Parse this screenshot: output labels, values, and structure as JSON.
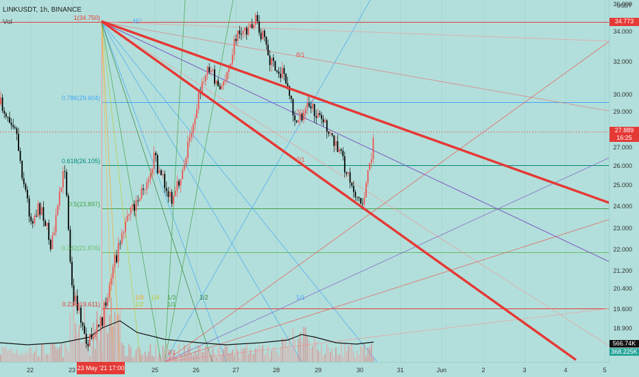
{
  "header": {
    "symbol_line": "LINKUSDT, 1h, BINANCE",
    "vol_label": "Vol"
  },
  "price_axis": {
    "currency": "USDT",
    "ticks": [
      "36.000",
      "34.000",
      "32.000",
      "30.000",
      "29.000",
      "27.000",
      "26.000",
      "25.000",
      "24.000",
      "23.000",
      "22.000",
      "21.200",
      "20.400",
      "19.600",
      "18.900"
    ]
  },
  "time_axis": {
    "ticks": [
      "22",
      "23",
      "25",
      "26",
      "27",
      "28",
      "29",
      "30",
      "31",
      "Jun",
      "2",
      "3",
      "4",
      "5"
    ],
    "highlight": "23 May '21  17:00"
  },
  "price_tags": {
    "top": "34.773",
    "current": "27.889",
    "countdown": "16:25",
    "vol1": "566.74K",
    "vol2": "368.225K"
  },
  "fib_labels": {
    "f1": "1(34.750)",
    "f786": "0.786(29.604)",
    "f618": "0.618(26.105)",
    "f5": "0.5(23.897)",
    "f382": "0.382(21.876)",
    "f236": "0.236(19.611)"
  },
  "gann_labels": [
    "45°",
    "8/1",
    "3/1",
    "2/1",
    "1/8",
    "1/4",
    "1/3",
    "1/2",
    "1/1",
    "1/2",
    "1/1",
    "2/1"
  ],
  "colors": {
    "bg": "#b2dfdb",
    "up": "#ef5350",
    "down": "#000000",
    "trend": "#e53935",
    "purple": "#7e57c2"
  },
  "chart_data": {
    "type": "candlestick",
    "ylim": [
      18.4,
      36.2
    ],
    "fib_levels": [
      34.75,
      29.604,
      26.105,
      23.897,
      21.876,
      19.611
    ]
  }
}
